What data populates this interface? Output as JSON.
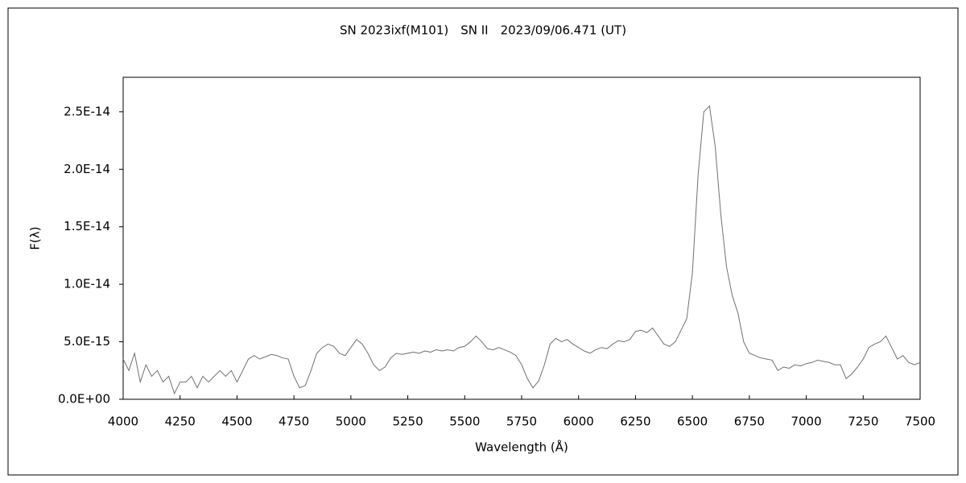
{
  "chart_data": {
    "type": "line",
    "title": "SN 2023ixf(M101)　SN II　2023/09/06.471 (UT)",
    "x_label": "Wavelength (Å)",
    "y_label": "F(λ)",
    "color": "#707070",
    "xlim": [
      4000,
      7500
    ],
    "xticks": [
      4000,
      4250,
      4500,
      4750,
      5000,
      5250,
      5500,
      5750,
      6000,
      6250,
      6500,
      6750,
      7000,
      7250,
      7500
    ],
    "ylim": [
      0,
      2.8e-14
    ],
    "yticks": [
      {
        "value": 0,
        "label": "0.0E+00"
      },
      {
        "value": 5e-15,
        "label": "5.0E-15"
      },
      {
        "value": 1e-14,
        "label": "1.0E-14"
      },
      {
        "value": 1.5e-14,
        "label": "1.5E-14"
      },
      {
        "value": 2e-14,
        "label": "2.0E-14"
      },
      {
        "value": 2.5e-14,
        "label": "2.5E-14"
      }
    ],
    "x": [
      4000,
      4025,
      4050,
      4075,
      4100,
      4125,
      4150,
      4175,
      4200,
      4225,
      4250,
      4275,
      4300,
      4325,
      4350,
      4375,
      4400,
      4425,
      4450,
      4475,
      4500,
      4525,
      4550,
      4575,
      4600,
      4625,
      4650,
      4675,
      4700,
      4725,
      4750,
      4775,
      4800,
      4825,
      4850,
      4875,
      4900,
      4925,
      4950,
      4975,
      5000,
      5025,
      5050,
      5075,
      5100,
      5125,
      5150,
      5175,
      5200,
      5225,
      5250,
      5275,
      5300,
      5325,
      5350,
      5375,
      5400,
      5425,
      5450,
      5475,
      5500,
      5525,
      5550,
      5575,
      5600,
      5625,
      5650,
      5675,
      5700,
      5725,
      5750,
      5775,
      5800,
      5825,
      5850,
      5875,
      5900,
      5925,
      5950,
      5975,
      6000,
      6025,
      6050,
      6075,
      6100,
      6125,
      6150,
      6175,
      6200,
      6225,
      6250,
      6275,
      6300,
      6325,
      6350,
      6375,
      6400,
      6425,
      6450,
      6475,
      6500,
      6525,
      6550,
      6575,
      6600,
      6625,
      6650,
      6675,
      6700,
      6725,
      6750,
      6775,
      6800,
      6825,
      6850,
      6875,
      6900,
      6925,
      6950,
      6975,
      7000,
      7025,
      7050,
      7075,
      7100,
      7125,
      7150,
      7175,
      7200,
      7225,
      7250,
      7275,
      7300,
      7325,
      7350,
      7375,
      7400,
      7425,
      7450,
      7475,
      7500
    ],
    "values": [
      3.5e-15,
      2.5e-15,
      4e-15,
      1.5e-15,
      3e-15,
      2e-15,
      2.5e-15,
      1.5e-15,
      2e-15,
      5e-16,
      1.5e-15,
      1.5e-15,
      2e-15,
      1e-15,
      2e-15,
      1.5e-15,
      2e-15,
      2.5e-15,
      2e-15,
      2.5e-15,
      1.5e-15,
      2.5e-15,
      3.5e-15,
      3.8e-15,
      3.5e-15,
      3.7e-15,
      3.9e-15,
      3.8e-15,
      3.6e-15,
      3.5e-15,
      2e-15,
      1e-15,
      1.2e-15,
      2.5e-15,
      4e-15,
      4.5e-15,
      4.8e-15,
      4.6e-15,
      4e-15,
      3.8e-15,
      4.5e-15,
      5.2e-15,
      4.8e-15,
      4e-15,
      3e-15,
      2.5e-15,
      2.8e-15,
      3.6e-15,
      4e-15,
      3.9e-15,
      4e-15,
      4.1e-15,
      4e-15,
      4.2e-15,
      4.1e-15,
      4.3e-15,
      4.2e-15,
      4.3e-15,
      4.2e-15,
      4.5e-15,
      4.6e-15,
      5e-15,
      5.5e-15,
      5e-15,
      4.4e-15,
      4.3e-15,
      4.5e-15,
      4.3e-15,
      4.1e-15,
      3.8e-15,
      3e-15,
      1.8e-15,
      1e-15,
      1.6e-15,
      3e-15,
      4.8e-15,
      5.3e-15,
      5e-15,
      5.2e-15,
      4.8e-15,
      4.5e-15,
      4.2e-15,
      4e-15,
      4.3e-15,
      4.5e-15,
      4.4e-15,
      4.8e-15,
      5.1e-15,
      5e-15,
      5.2e-15,
      5.9e-15,
      6e-15,
      5.8e-15,
      6.2e-15,
      5.5e-15,
      4.8e-15,
      4.6e-15,
      5e-15,
      6e-15,
      7e-15,
      1.1e-14,
      1.95e-14,
      2.5e-14,
      2.55e-14,
      2.2e-14,
      1.6e-14,
      1.15e-14,
      9e-15,
      7.5e-15,
      5e-15,
      4e-15,
      3.8e-15,
      3.6e-15,
      3.5e-15,
      3.4e-15,
      2.5e-15,
      2.8e-15,
      2.7e-15,
      3e-15,
      2.9e-15,
      3.1e-15,
      3.2e-15,
      3.4e-15,
      3.3e-15,
      3.2e-15,
      3e-15,
      3e-15,
      1.8e-15,
      2.2e-15,
      2.8e-15,
      3.5e-15,
      4.5e-15,
      4.8e-15,
      5e-15,
      5.5e-15,
      4.5e-15,
      3.5e-15,
      3.8e-15,
      3.2e-15,
      3e-15,
      3.2e-15
    ]
  }
}
